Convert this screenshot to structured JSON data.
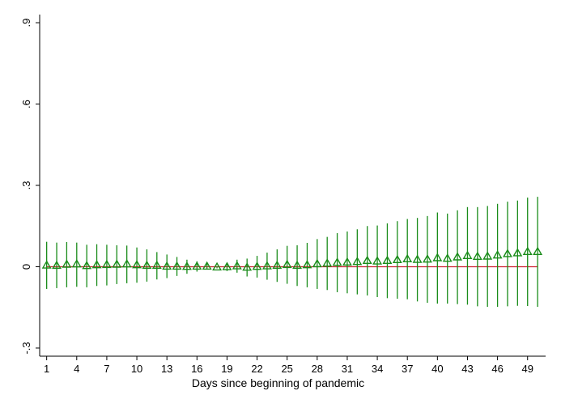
{
  "chart_data": {
    "type": "scatter",
    "title": "",
    "xlabel": "Days since beginning of pandemic",
    "ylabel": "",
    "xlim": [
      0.3,
      50.8
    ],
    "ylim": [
      -0.33,
      0.93
    ],
    "x_ticks": [
      1,
      4,
      7,
      10,
      13,
      16,
      19,
      22,
      25,
      28,
      31,
      34,
      37,
      40,
      43,
      46,
      49
    ],
    "y_ticks": [
      -0.3,
      0,
      0.3,
      0.6,
      0.9
    ],
    "y_tick_labels": [
      "-.3",
      "0",
      ".3",
      ".6",
      ".9"
    ],
    "reference_line": {
      "y": 0,
      "color": "#cc2030"
    },
    "grid": false,
    "marker": "hollow-triangle",
    "series_color": "#1a8c1a",
    "points": [
      {
        "x": 1,
        "y": 0.005,
        "lo": -0.082,
        "hi": 0.092
      },
      {
        "x": 2,
        "y": 0.004,
        "lo": -0.079,
        "hi": 0.089
      },
      {
        "x": 3,
        "y": 0.008,
        "lo": -0.076,
        "hi": 0.091
      },
      {
        "x": 4,
        "y": 0.009,
        "lo": -0.074,
        "hi": 0.089
      },
      {
        "x": 5,
        "y": 0.003,
        "lo": -0.076,
        "hi": 0.081
      },
      {
        "x": 6,
        "y": 0.006,
        "lo": -0.071,
        "hi": 0.083
      },
      {
        "x": 7,
        "y": 0.007,
        "lo": -0.069,
        "hi": 0.081
      },
      {
        "x": 8,
        "y": 0.008,
        "lo": -0.064,
        "hi": 0.079
      },
      {
        "x": 9,
        "y": 0.009,
        "lo": -0.061,
        "hi": 0.078
      },
      {
        "x": 10,
        "y": 0.006,
        "lo": -0.059,
        "hi": 0.071
      },
      {
        "x": 11,
        "y": 0.004,
        "lo": -0.055,
        "hi": 0.064
      },
      {
        "x": 12,
        "y": 0.004,
        "lo": -0.047,
        "hi": 0.054
      },
      {
        "x": 13,
        "y": 0.001,
        "lo": -0.042,
        "hi": 0.045
      },
      {
        "x": 14,
        "y": 0.001,
        "lo": -0.034,
        "hi": 0.036
      },
      {
        "x": 15,
        "y": 0.0,
        "lo": -0.026,
        "hi": 0.026
      },
      {
        "x": 16,
        "y": 0.001,
        "lo": -0.018,
        "hi": 0.02
      },
      {
        "x": 17,
        "y": 0.001,
        "lo": -0.01,
        "hi": 0.012
      },
      {
        "x": 18,
        "y": -0.002,
        "lo": -0.006,
        "hi": 0.002
      },
      {
        "x": 19,
        "y": -0.001,
        "lo": -0.016,
        "hi": 0.014
      },
      {
        "x": 20,
        "y": 0.002,
        "lo": -0.022,
        "hi": 0.026
      },
      {
        "x": 21,
        "y": -0.003,
        "lo": -0.036,
        "hi": 0.03
      },
      {
        "x": 22,
        "y": 0.0,
        "lo": -0.04,
        "hi": 0.04
      },
      {
        "x": 23,
        "y": 0.002,
        "lo": -0.048,
        "hi": 0.052
      },
      {
        "x": 24,
        "y": 0.004,
        "lo": -0.056,
        "hi": 0.064
      },
      {
        "x": 25,
        "y": 0.007,
        "lo": -0.063,
        "hi": 0.077
      },
      {
        "x": 26,
        "y": 0.004,
        "lo": -0.071,
        "hi": 0.079
      },
      {
        "x": 27,
        "y": 0.006,
        "lo": -0.076,
        "hi": 0.088
      },
      {
        "x": 28,
        "y": 0.01,
        "lo": -0.082,
        "hi": 0.102
      },
      {
        "x": 29,
        "y": 0.012,
        "lo": -0.086,
        "hi": 0.11
      },
      {
        "x": 30,
        "y": 0.015,
        "lo": -0.094,
        "hi": 0.124
      },
      {
        "x": 31,
        "y": 0.016,
        "lo": -0.098,
        "hi": 0.13
      },
      {
        "x": 32,
        "y": 0.018,
        "lo": -0.102,
        "hi": 0.138
      },
      {
        "x": 33,
        "y": 0.022,
        "lo": -0.106,
        "hi": 0.15
      },
      {
        "x": 34,
        "y": 0.02,
        "lo": -0.112,
        "hi": 0.152
      },
      {
        "x": 35,
        "y": 0.022,
        "lo": -0.116,
        "hi": 0.16
      },
      {
        "x": 36,
        "y": 0.025,
        "lo": -0.118,
        "hi": 0.168
      },
      {
        "x": 37,
        "y": 0.028,
        "lo": -0.12,
        "hi": 0.176
      },
      {
        "x": 38,
        "y": 0.026,
        "lo": -0.128,
        "hi": 0.18
      },
      {
        "x": 39,
        "y": 0.027,
        "lo": -0.133,
        "hi": 0.187
      },
      {
        "x": 40,
        "y": 0.032,
        "lo": -0.136,
        "hi": 0.2
      },
      {
        "x": 41,
        "y": 0.03,
        "lo": -0.136,
        "hi": 0.196
      },
      {
        "x": 42,
        "y": 0.035,
        "lo": -0.138,
        "hi": 0.208
      },
      {
        "x": 43,
        "y": 0.04,
        "lo": -0.14,
        "hi": 0.22
      },
      {
        "x": 44,
        "y": 0.037,
        "lo": -0.146,
        "hi": 0.22
      },
      {
        "x": 45,
        "y": 0.038,
        "lo": -0.148,
        "hi": 0.224
      },
      {
        "x": 46,
        "y": 0.042,
        "lo": -0.148,
        "hi": 0.232
      },
      {
        "x": 47,
        "y": 0.047,
        "lo": -0.146,
        "hi": 0.24
      },
      {
        "x": 48,
        "y": 0.05,
        "lo": -0.144,
        "hi": 0.244
      },
      {
        "x": 49,
        "y": 0.055,
        "lo": -0.145,
        "hi": 0.255
      },
      {
        "x": 50,
        "y": 0.055,
        "lo": -0.148,
        "hi": 0.258
      }
    ]
  }
}
